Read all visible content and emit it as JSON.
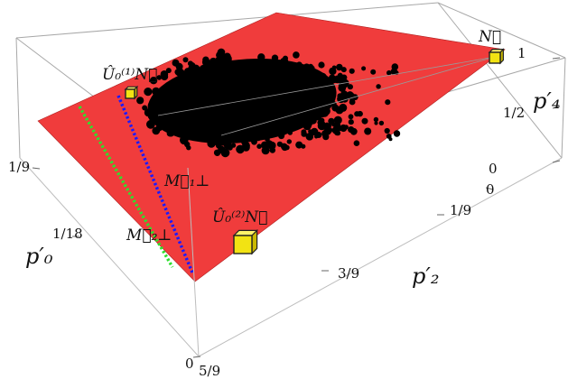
{
  "chart_data": {
    "type": "scatter",
    "title": "",
    "axes": {
      "p0": {
        "label": "p'_0",
        "label_display": "p′₀",
        "range": [
          "0",
          "1/9"
        ],
        "ticks": [
          "1/9",
          "1/18",
          "0"
        ]
      },
      "p2": {
        "label": "p'_2",
        "label_display": "p′₂",
        "range": [
          "0",
          "5/9"
        ],
        "ticks": [
          "0",
          "1/9",
          "3/9",
          "5/9"
        ]
      },
      "p4": {
        "label": "p'_4",
        "label_display": "p′₄",
        "range": [
          "0",
          "1"
        ],
        "ticks": [
          "0",
          "1/2",
          "1"
        ]
      }
    },
    "plane": {
      "color": "#f03c3c"
    },
    "cloud": {
      "color": "#000000"
    },
    "annotations": {
      "N": "N⃗",
      "U1N": "Û₀⁽¹⁾N⃗",
      "U2N": "Û₀⁽²⁾N⃗",
      "M1perp": "M⃗₁⊥",
      "M2perp": "M⃗₂⊥"
    },
    "lines": [
      {
        "name": "M1perp",
        "color": "#1a1aff"
      },
      {
        "name": "M2perp",
        "color": "#2ee02e"
      }
    ],
    "markers": {
      "color": "#f2e313"
    },
    "grid": false
  }
}
